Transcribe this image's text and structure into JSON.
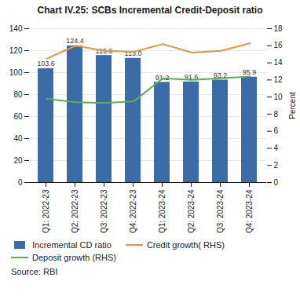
{
  "chart_data": {
    "type": "bar",
    "title": "Chart IV.25: SCBs Incremental Credit-Deposit ratio",
    "categories": [
      "Q1: 2022-23",
      "Q2: 2022-23",
      "Q3: 2022-23",
      "Q4: 2022-23",
      "Q1: 2023-24",
      "Q2: 2023-24",
      "Q3: 2023-24",
      "Q4: 2023-24"
    ],
    "series": [
      {
        "name": "Incremental CD ratio",
        "type": "bar",
        "color": "#3B6CA8",
        "values": [
          103.6,
          124.4,
          115.6,
          113.0,
          91.2,
          91.6,
          93.2,
          95.9
        ],
        "value_labels": [
          "103.6",
          "124.4",
          "115.6",
          "113.0",
          "91.2",
          "91.6",
          "93.2",
          "95.9"
        ]
      },
      {
        "name": "Credit growth( RHS)",
        "type": "line",
        "color": "#E8943A",
        "axis": "y2",
        "values": [
          14.5,
          16.0,
          15.4,
          15.3,
          16.2,
          15.2,
          15.4,
          16.3
        ]
      },
      {
        "name": "Deposit growth (RHS)",
        "type": "line",
        "color": "#5DB050",
        "axis": "y2",
        "values": [
          9.8,
          9.4,
          9.3,
          9.5,
          12.2,
          12.0,
          12.2,
          12.4
        ]
      }
    ],
    "ylim": [
      0,
      140
    ],
    "yticks": [
      0,
      20,
      40,
      60,
      80,
      100,
      120,
      140
    ],
    "y2lim": [
      0,
      18
    ],
    "y2ticks": [
      0,
      2,
      4,
      6,
      8,
      10,
      12,
      14,
      16,
      18
    ],
    "y2label": "Percent",
    "grid": true,
    "data_labels": true,
    "legend": "bottom",
    "annotations": [
      "Source: RBI"
    ]
  }
}
